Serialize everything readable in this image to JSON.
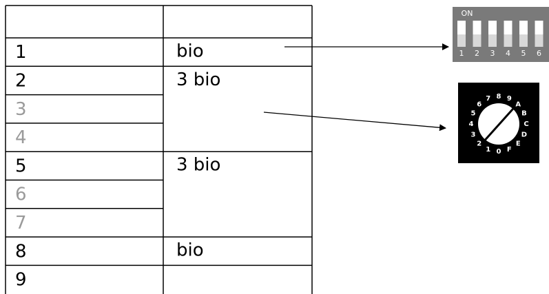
{
  "table": {
    "rows": [
      {
        "number": "1",
        "label": "bio",
        "active": true
      },
      {
        "number": "2",
        "label": "3 bio",
        "active": true,
        "span": 3
      },
      {
        "number": "3",
        "active": false
      },
      {
        "number": "4",
        "active": false
      },
      {
        "number": "5",
        "label": "3 bio",
        "active": true,
        "span": 3
      },
      {
        "number": "6",
        "active": false
      },
      {
        "number": "7",
        "active": false
      },
      {
        "number": "8",
        "label": "bio",
        "active": true
      },
      {
        "number": "9",
        "active": true
      }
    ]
  },
  "dip_switch": {
    "on_label": "ON",
    "numbers": [
      "1",
      "2",
      "3",
      "4",
      "5",
      "6"
    ]
  },
  "dial": {
    "labels": [
      "0",
      "1",
      "2",
      "3",
      "4",
      "5",
      "6",
      "7",
      "8",
      "9",
      "A",
      "B",
      "C",
      "D",
      "E",
      "F"
    ]
  }
}
